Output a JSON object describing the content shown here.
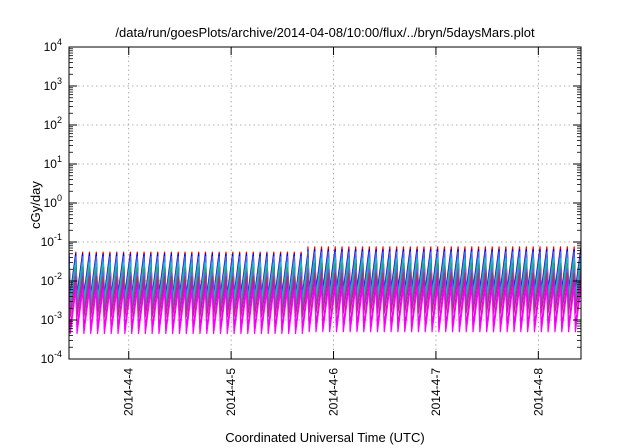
{
  "chart_data": {
    "type": "line",
    "title": "/data/run/goesPlots/archive/2014-04-08/10:00/flux/../bryn/5daysMars.plot",
    "xlabel": "Coordinated Universal Time (UTC)",
    "ylabel": "cGy/day",
    "yscale": "log",
    "ylim": [
      0.0001,
      10000
    ],
    "y_ticks": [
      {
        "value": 0.0001,
        "base": "10",
        "exp": "-4"
      },
      {
        "value": 0.001,
        "base": "10",
        "exp": "-3"
      },
      {
        "value": 0.01,
        "base": "10",
        "exp": "-2"
      },
      {
        "value": 0.1,
        "base": "10",
        "exp": "-1"
      },
      {
        "value": 1,
        "base": "10",
        "exp": "0"
      },
      {
        "value": 10,
        "base": "10",
        "exp": "1"
      },
      {
        "value": 100,
        "base": "10",
        "exp": "2"
      },
      {
        "value": 1000,
        "base": "10",
        "exp": "3"
      },
      {
        "value": 10000,
        "base": "10",
        "exp": "4"
      }
    ],
    "xlim": [
      "2014-04-03T10:00",
      "2014-04-08T10:00"
    ],
    "x_ticks": [
      {
        "value": "2014-04-04T00:00",
        "label": "2014-4-4"
      },
      {
        "value": "2014-04-05T00:00",
        "label": "2014-4-5"
      },
      {
        "value": "2014-04-06T00:00",
        "label": "2014-4-6"
      },
      {
        "value": "2014-04-07T00:00",
        "label": "2014-4-7"
      },
      {
        "value": "2014-04-08T00:00",
        "label": "2014-4-8"
      }
    ],
    "grid": true,
    "legend": "none",
    "sawtooth_period_hours": 1.6,
    "gaps_utc": [
      [
        "2014-04-06T06:00",
        "2014-04-06T06:30"
      ]
    ],
    "series": [
      {
        "color": "#ff0000",
        "segments": [
          {
            "start": "2014-04-03T10:00",
            "end": "2014-04-05T18:00",
            "peak": 0.055,
            "trough": 0.0045
          },
          {
            "start": "2014-04-05T18:00",
            "end": "2014-04-08T10:00",
            "peak": 0.075,
            "trough": 0.006
          }
        ]
      },
      {
        "color": "#0000ff",
        "segments": [
          {
            "start": "2014-04-03T10:00",
            "end": "2014-04-05T18:00",
            "peak": 0.05,
            "trough": 0.004
          },
          {
            "start": "2014-04-05T18:00",
            "end": "2014-04-08T10:00",
            "peak": 0.065,
            "trough": 0.0055
          }
        ]
      },
      {
        "color": "#3377ff",
        "segments": [
          {
            "start": "2014-04-03T10:00",
            "end": "2014-04-05T18:00",
            "peak": 0.042,
            "trough": 0.0035
          },
          {
            "start": "2014-04-05T18:00",
            "end": "2014-04-08T10:00",
            "peak": 0.055,
            "trough": 0.0045
          }
        ]
      },
      {
        "color": "#00cccc",
        "segments": [
          {
            "start": "2014-04-03T10:00",
            "end": "2014-04-05T18:00",
            "peak": 0.03,
            "trough": 0.0028
          },
          {
            "start": "2014-04-05T18:00",
            "end": "2014-04-08T10:00",
            "peak": 0.038,
            "trough": 0.0035
          }
        ]
      },
      {
        "color": "#22aa66",
        "segments": [
          {
            "start": "2014-04-03T10:00",
            "end": "2014-04-05T18:00",
            "peak": 0.022,
            "trough": 0.0022
          },
          {
            "start": "2014-04-05T18:00",
            "end": "2014-04-08T10:00",
            "peak": 0.028,
            "trough": 0.0028
          }
        ]
      },
      {
        "color": "#8844ff",
        "segments": [
          {
            "start": "2014-04-03T10:00",
            "end": "2014-04-05T18:00",
            "peak": 0.016,
            "trough": 0.0016
          },
          {
            "start": "2014-04-05T18:00",
            "end": "2014-04-08T10:00",
            "peak": 0.02,
            "trough": 0.002
          }
        ]
      },
      {
        "color": "#aa3366",
        "segments": [
          {
            "start": "2014-04-03T10:00",
            "end": "2014-04-05T18:00",
            "peak": 0.013,
            "trough": 0.0012
          },
          {
            "start": "2014-04-05T18:00",
            "end": "2014-04-08T10:00",
            "peak": 0.016,
            "trough": 0.0015
          }
        ]
      },
      {
        "color": "#dd00dd",
        "segments": [
          {
            "start": "2014-04-03T10:00",
            "end": "2014-04-05T18:00",
            "peak": 0.009,
            "trough": 0.0006
          },
          {
            "start": "2014-04-05T18:00",
            "end": "2014-04-08T10:00",
            "peak": 0.011,
            "trough": 0.0007
          }
        ]
      },
      {
        "color": "#ff00ff",
        "segments": [
          {
            "start": "2014-04-03T10:00",
            "end": "2014-04-05T18:00",
            "peak": 0.006,
            "trough": 0.00045
          },
          {
            "start": "2014-04-05T18:00",
            "end": "2014-04-08T10:00",
            "peak": 0.007,
            "trough": 0.0005
          }
        ]
      }
    ]
  }
}
